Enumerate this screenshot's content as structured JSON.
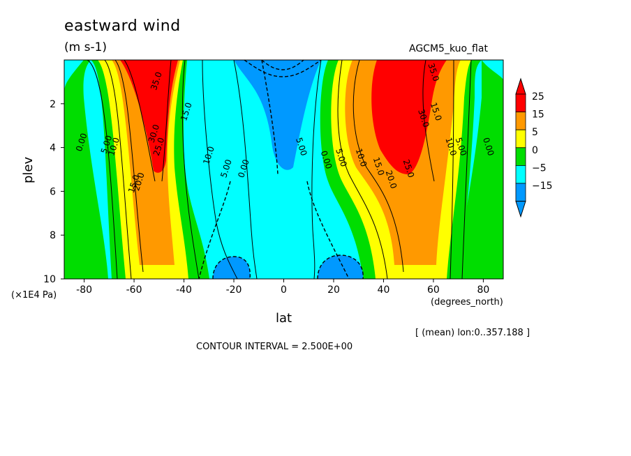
{
  "header": {
    "title": "eastward wind",
    "units": "(m s-1)",
    "run_name": "AGCM5_kuo_flat"
  },
  "footer": {
    "axis_units": "(×1E4 Pa)",
    "x_units": "(degrees_north)",
    "mean_note": "[ (mean) lon:0..357.188 ]",
    "contour_interval": "CONTOUR INTERVAL = 2.500E+00"
  },
  "chart_data": {
    "type": "heatmap",
    "title": "eastward wind",
    "units": "(m s-1)",
    "xlabel": "lat",
    "ylabel": "plev",
    "x_ticks": [
      -80,
      -60,
      -40,
      -20,
      0,
      20,
      40,
      60,
      80
    ],
    "y_ticks": [
      2,
      4,
      6,
      8,
      10
    ],
    "xlim": [
      -88,
      88
    ],
    "ylim": [
      0,
      10
    ],
    "y_inverted": true,
    "colorbar": {
      "labels": [
        "25",
        "15",
        "5",
        "0",
        "−5",
        "−15"
      ],
      "colors": [
        "#ff0000",
        "#ff9900",
        "#ffff00",
        "#00dd00",
        "#00ffff",
        "#0099ff"
      ]
    },
    "contour_labels": [
      {
        "text": "35.0",
        "lat": -50,
        "plev": 1.0
      },
      {
        "text": "30.0",
        "lat": -51,
        "plev": 3.4
      },
      {
        "text": "25.0",
        "lat": -49,
        "plev": 4.0
      },
      {
        "text": "20.0",
        "lat": -57,
        "plev": 5.6
      },
      {
        "text": "15.0",
        "lat": -59,
        "plev": 5.7
      },
      {
        "text": "10.0",
        "lat": -67,
        "plev": 4.0
      },
      {
        "text": "5.00",
        "lat": -70,
        "plev": 3.9
      },
      {
        "text": "0.00",
        "lat": -80,
        "plev": 3.8
      },
      {
        "text": "15.0",
        "lat": -38,
        "plev": 2.4
      },
      {
        "text": "10.0",
        "lat": -29,
        "plev": 4.4
      },
      {
        "text": "5.00",
        "lat": -22,
        "plev": 5.0
      },
      {
        "text": "0.00",
        "lat": -15,
        "plev": 5.0
      },
      {
        "text": "5.00",
        "lat": 6,
        "plev": 4.0
      },
      {
        "text": "0.00",
        "lat": 16,
        "plev": 4.6
      },
      {
        "text": "5.00",
        "lat": 22,
        "plev": 4.5
      },
      {
        "text": "10.0",
        "lat": 30,
        "plev": 4.5
      },
      {
        "text": "15.0",
        "lat": 37,
        "plev": 4.9
      },
      {
        "text": "20.0",
        "lat": 42,
        "plev": 5.5
      },
      {
        "text": "25.0",
        "lat": 49,
        "plev": 5.0
      },
      {
        "text": "30.0",
        "lat": 55,
        "plev": 2.7
      },
      {
        "text": "35.0",
        "lat": 59,
        "plev": 0.6
      },
      {
        "text": "15.0",
        "lat": 60,
        "plev": 2.4
      },
      {
        "text": "10.0",
        "lat": 66,
        "plev": 4.0
      },
      {
        "text": "5.00",
        "lat": 70,
        "plev": 4.0
      },
      {
        "text": "0.00",
        "lat": 81,
        "plev": 4.0
      }
    ]
  }
}
